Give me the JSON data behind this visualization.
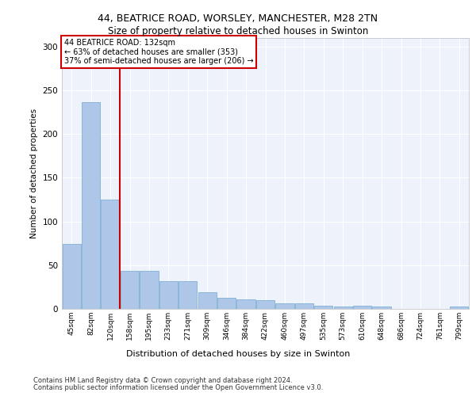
{
  "title1": "44, BEATRICE ROAD, WORSLEY, MANCHESTER, M28 2TN",
  "title2": "Size of property relative to detached houses in Swinton",
  "xlabel": "Distribution of detached houses by size in Swinton",
  "ylabel": "Number of detached properties",
  "categories": [
    "45sqm",
    "82sqm",
    "120sqm",
    "158sqm",
    "195sqm",
    "233sqm",
    "271sqm",
    "309sqm",
    "346sqm",
    "384sqm",
    "422sqm",
    "460sqm",
    "497sqm",
    "535sqm",
    "573sqm",
    "610sqm",
    "648sqm",
    "686sqm",
    "724sqm",
    "761sqm",
    "799sqm"
  ],
  "values": [
    74,
    236,
    125,
    43,
    43,
    32,
    32,
    19,
    13,
    11,
    10,
    6,
    6,
    4,
    3,
    4,
    3,
    0,
    0,
    0,
    3
  ],
  "bar_color": "#aec6e8",
  "bar_edge_color": "#6fa8d0",
  "vline_color": "#cc0000",
  "box_edge_color": "#cc0000",
  "annotation_line1": "44 BEATRICE ROAD: 132sqm",
  "annotation_line2": "← 63% of detached houses are smaller (353)",
  "annotation_line3": "37% of semi-detached houses are larger (206) →",
  "ylim": [
    0,
    310
  ],
  "yticks": [
    0,
    50,
    100,
    150,
    200,
    250,
    300
  ],
  "footer1": "Contains HM Land Registry data © Crown copyright and database right 2024.",
  "footer2": "Contains public sector information licensed under the Open Government Licence v3.0.",
  "bg_color": "#eef2fb",
  "grid_color": "#ffffff"
}
